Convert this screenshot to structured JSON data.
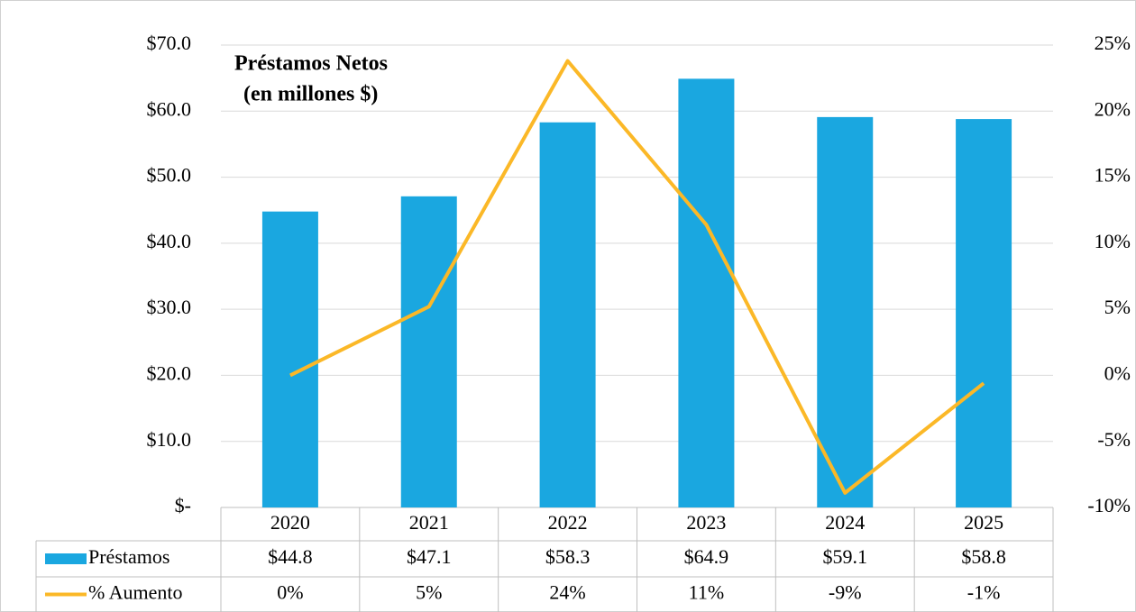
{
  "chart_data": {
    "type": "bar_line",
    "title": "Préstamos Netos",
    "subtitle": "(en millones $)",
    "categories": [
      "2020",
      "2021",
      "2022",
      "2023",
      "2024",
      "2025"
    ],
    "series": [
      {
        "name": "Préstamos",
        "color": "#1aa7e0",
        "type": "bar",
        "values": [
          44.8,
          47.1,
          58.3,
          64.9,
          59.1,
          58.8
        ],
        "value_labels": [
          "$44.8",
          "$47.1",
          "$58.3",
          "$64.9",
          "$59.1",
          "$58.8"
        ]
      },
      {
        "name": "% Aumento",
        "color": "#fbb827",
        "type": "line",
        "axis": "y2",
        "values": [
          0,
          5.2,
          23.8,
          11.4,
          -8.9,
          -0.6
        ],
        "value_labels": [
          "0%",
          "5%",
          "24%",
          "11%",
          "-9%",
          "-1%"
        ]
      }
    ],
    "ylim": [
      0,
      70
    ],
    "yticks": [
      {
        "value": 0,
        "label": "$-"
      },
      {
        "value": 10,
        "label": "$10.0"
      },
      {
        "value": 20,
        "label": "$20.0"
      },
      {
        "value": 30,
        "label": "$30.0"
      },
      {
        "value": 40,
        "label": "$40.0"
      },
      {
        "value": 50,
        "label": "$50.0"
      },
      {
        "value": 60,
        "label": "$60.0"
      },
      {
        "value": 70,
        "label": "$70.0"
      }
    ],
    "y2lim": [
      -10,
      25
    ],
    "y2ticks": [
      {
        "value": -10,
        "label": "-10%"
      },
      {
        "value": -5,
        "label": "-5%"
      },
      {
        "value": 0,
        "label": "0%"
      },
      {
        "value": 5,
        "label": "5%"
      },
      {
        "value": 10,
        "label": "10%"
      },
      {
        "value": 15,
        "label": "15%"
      },
      {
        "value": 20,
        "label": "20%"
      },
      {
        "value": 25,
        "label": "25%"
      }
    ],
    "grid": true
  }
}
